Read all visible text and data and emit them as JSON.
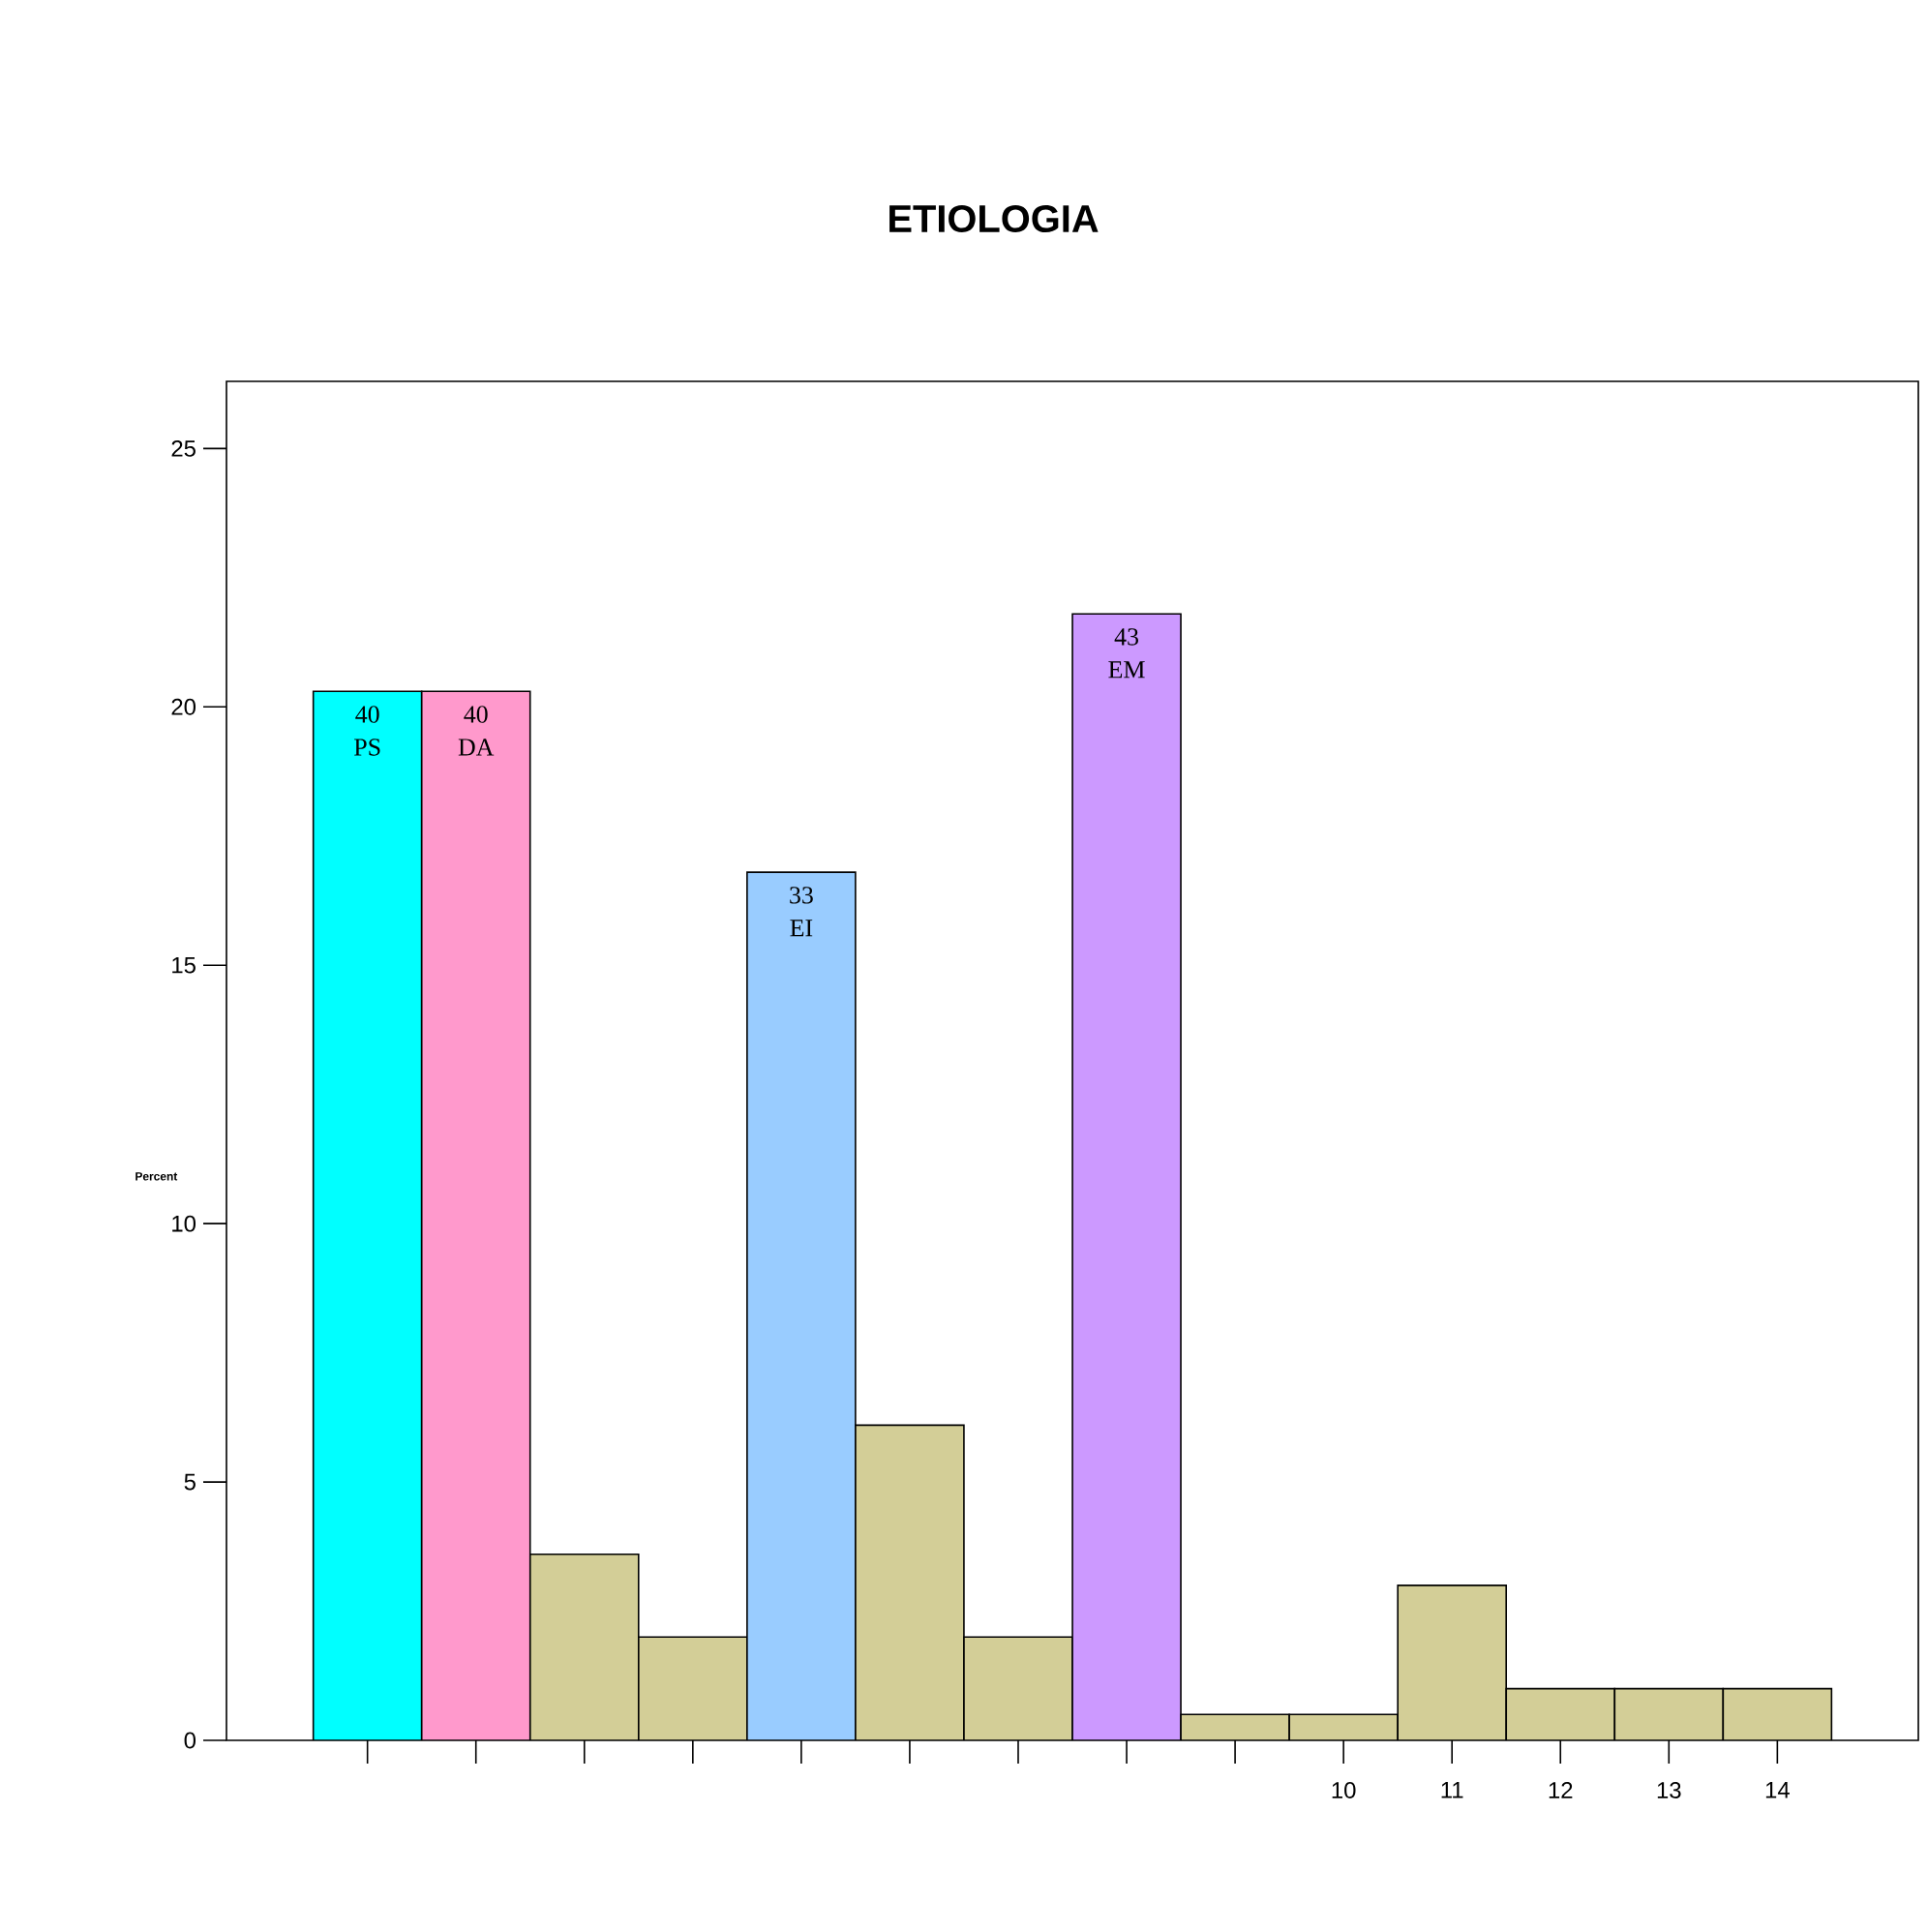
{
  "chart_data": {
    "type": "bar",
    "title": "ETIOLOGIA",
    "ylabel": "Percent",
    "categories": [
      null,
      null,
      null,
      null,
      null,
      null,
      null,
      null,
      null,
      "10",
      "11",
      "12",
      "13",
      "14"
    ],
    "values": [
      20.3,
      20.3,
      3.6,
      2.0,
      16.8,
      6.1,
      2.0,
      21.8,
      0.5,
      0.5,
      3.0,
      1.0,
      1.0,
      1.0
    ],
    "colors": [
      "#00ffff",
      "#ff99cc",
      "#d3ce97",
      "#d3ce97",
      "#99ccff",
      "#d3ce97",
      "#d3ce97",
      "#cc99ff",
      "#d3ce97",
      "#d3ce97",
      "#d3ce97",
      "#d3ce97",
      "#d3ce97",
      "#d3ce97"
    ],
    "annotations": [
      {
        "text": "40 PS",
        "y": 20.3
      },
      {
        "text": "40 DA",
        "y": 20.3
      },
      {
        "text": "33 EI",
        "y": 16.8
      },
      {
        "text": "43 EM",
        "y": 21.8
      }
    ],
    "ylim": [
      0,
      26.3
    ],
    "yticks": [
      0,
      5,
      10,
      15,
      20,
      25
    ],
    "grid": false,
    "legend": false
  }
}
